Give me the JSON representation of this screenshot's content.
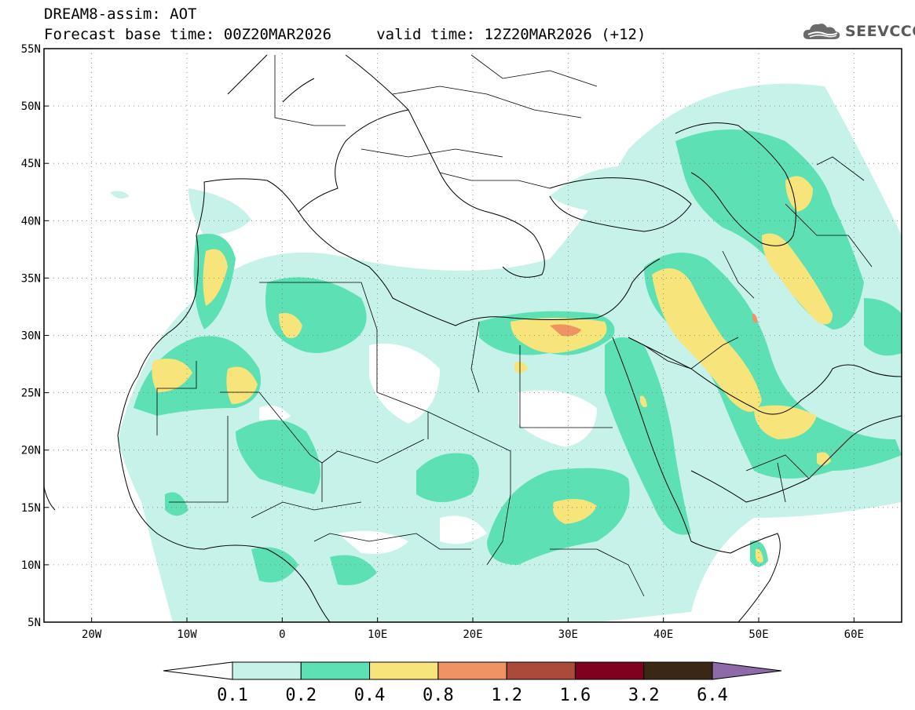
{
  "header": {
    "line1": "DREAM8-assim: AOT",
    "line2": "Forecast base time: 00Z20MAR2026     valid time: 12Z20MAR2026 (+12)"
  },
  "logo": {
    "text": "SEEVCCC",
    "icon": "cloud-icon"
  },
  "map": {
    "lon_range": [
      -25,
      65
    ],
    "lat_range": [
      5,
      55
    ],
    "lat_ticks": [
      {
        "value": 55,
        "label": "55N"
      },
      {
        "value": 50,
        "label": "50N"
      },
      {
        "value": 45,
        "label": "45N"
      },
      {
        "value": 40,
        "label": "40N"
      },
      {
        "value": 35,
        "label": "35N"
      },
      {
        "value": 30,
        "label": "30N"
      },
      {
        "value": 25,
        "label": "25N"
      },
      {
        "value": 20,
        "label": "20N"
      },
      {
        "value": 15,
        "label": "15N"
      },
      {
        "value": 10,
        "label": "10N"
      },
      {
        "value": 5,
        "label": "5N"
      }
    ],
    "lon_ticks": [
      {
        "value": -20,
        "label": "20W"
      },
      {
        "value": -10,
        "label": "10W"
      },
      {
        "value": 0,
        "label": "0"
      },
      {
        "value": 10,
        "label": "10E"
      },
      {
        "value": 20,
        "label": "20E"
      },
      {
        "value": 30,
        "label": "30E"
      },
      {
        "value": 40,
        "label": "40E"
      },
      {
        "value": 50,
        "label": "50E"
      },
      {
        "value": 60,
        "label": "60E"
      }
    ],
    "grid": "dotted"
  },
  "colorbar": {
    "levels": [
      "0.1",
      "0.2",
      "0.4",
      "0.8",
      "1.2",
      "1.6",
      "3.2",
      "6.4"
    ],
    "colors": [
      "#ffffff",
      "#c7f2ea",
      "#5ce0b4",
      "#f7e47a",
      "#ee9362",
      "#aa4a3a",
      "#800020",
      "#3a2814",
      "#8e6aa8"
    ]
  }
}
